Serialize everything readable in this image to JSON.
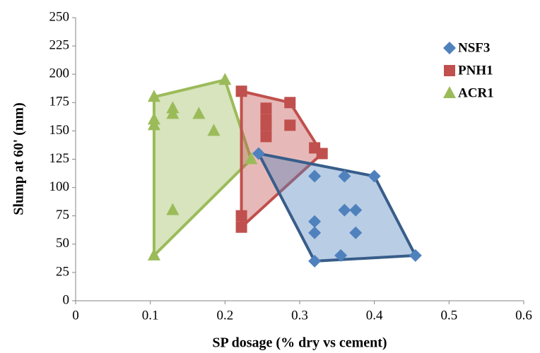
{
  "chart_data": {
    "type": "scatter",
    "x_label": "SP dosage (% dry vs cement)",
    "y_label": "Slump at 60' (mm)",
    "xlim": [
      0,
      0.6
    ],
    "xticks": [
      0,
      0.1,
      0.2,
      0.3,
      0.4,
      0.5,
      0.6
    ],
    "ylim": [
      0,
      250
    ],
    "yticks": [
      0,
      25,
      50,
      75,
      100,
      125,
      150,
      175,
      200,
      225,
      250
    ],
    "grid": false,
    "hull": true,
    "legend": "upper right",
    "series": [
      {
        "name": "NSF3",
        "color": "#4f81bd",
        "edge": "#385d8a",
        "marker": "diamond",
        "x": [
          0.245,
          0.32,
          0.36,
          0.4,
          0.32,
          0.32,
          0.36,
          0.375,
          0.375,
          0.32,
          0.355,
          0.455
        ],
        "values": [
          130,
          110,
          110,
          110,
          70,
          60,
          80,
          80,
          60,
          35,
          40,
          40
        ]
      },
      {
        "name": "PNH1",
        "color": "#c0504d",
        "edge": "#c0504d",
        "marker": "square",
        "x": [
          0.222,
          0.222,
          0.255,
          0.255,
          0.255,
          0.255,
          0.287,
          0.287,
          0.32,
          0.33,
          0.222
        ],
        "values": [
          185,
          75,
          170,
          160,
          155,
          145,
          175,
          155,
          135,
          130,
          65
        ]
      },
      {
        "name": "ACR1",
        "color": "#9bbb59",
        "edge": "#9bbb59",
        "marker": "triangle",
        "x": [
          0.105,
          0.105,
          0.105,
          0.13,
          0.13,
          0.165,
          0.185,
          0.2,
          0.235,
          0.13,
          0.105
        ],
        "values": [
          180,
          160,
          155,
          170,
          165,
          165,
          150,
          195,
          125,
          80,
          40
        ]
      }
    ]
  }
}
